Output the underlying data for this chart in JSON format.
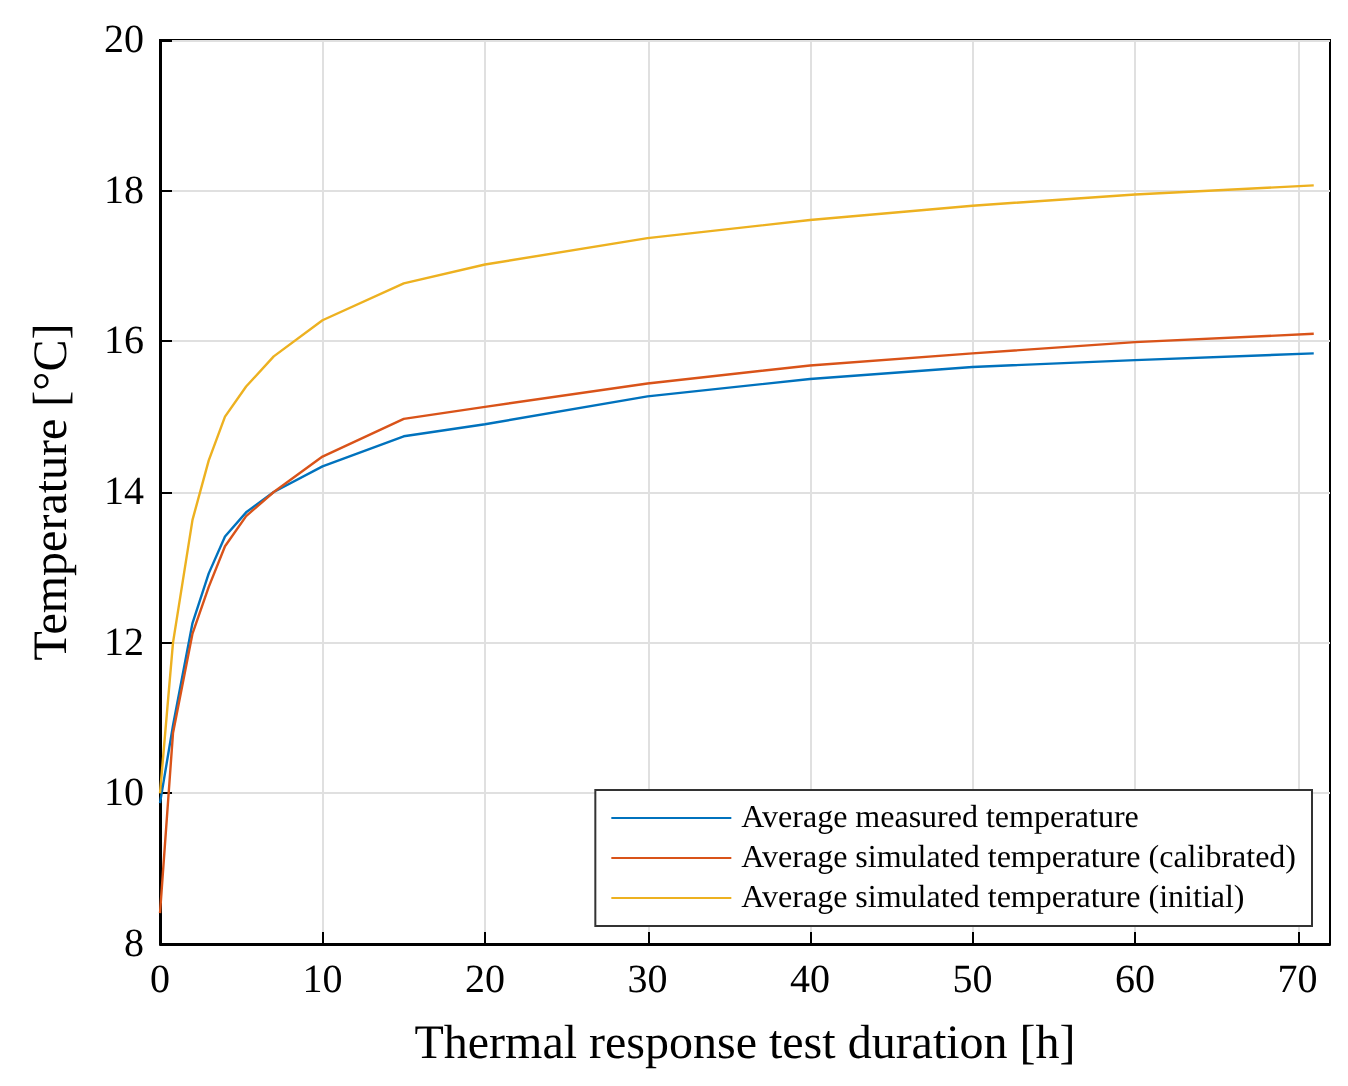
{
  "chart_data": {
    "type": "line",
    "xlabel": "Thermal response test duration [h]",
    "ylabel": "Temperature [°C]",
    "x": [
      0,
      0.8,
      2,
      3,
      4,
      5.3,
      7,
      10,
      15,
      20,
      30,
      40,
      50,
      60,
      71
    ],
    "series": [
      {
        "name": "Average measured temperature",
        "color": "#0072bd",
        "values": [
          9.87,
          10.9,
          12.26,
          12.92,
          13.41,
          13.73,
          14.0,
          14.34,
          14.74,
          14.9,
          15.27,
          15.5,
          15.66,
          15.75,
          15.84
        ]
      },
      {
        "name": "Average simulated temperature (calibrated)",
        "color": "#d95319",
        "values": [
          8.41,
          10.8,
          12.12,
          12.74,
          13.28,
          13.68,
          14.0,
          14.47,
          14.97,
          15.13,
          15.44,
          15.68,
          15.84,
          15.99,
          16.1
        ]
      },
      {
        "name": "Average simulated temperature (initial)",
        "color": "#edb120",
        "values": [
          10.0,
          12.0,
          13.63,
          14.42,
          15.0,
          15.4,
          15.8,
          16.28,
          16.77,
          17.02,
          17.37,
          17.61,
          17.8,
          17.95,
          18.07
        ]
      }
    ],
    "xlim": [
      0,
      72
    ],
    "xticks": [
      0,
      10,
      20,
      30,
      40,
      50,
      60,
      70
    ],
    "ylim": [
      8,
      20
    ],
    "yticks": [
      8,
      10,
      12,
      14,
      16,
      18,
      20
    ],
    "grid": true,
    "legend": "bottom right",
    "marker": "none",
    "line_style": "solid"
  }
}
